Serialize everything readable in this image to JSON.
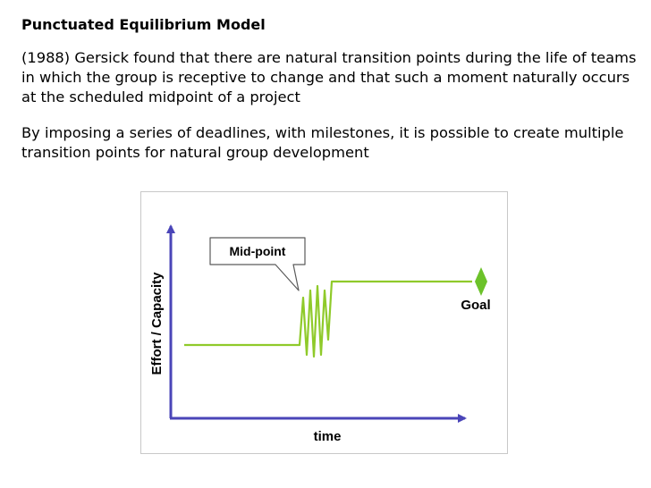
{
  "slide": {
    "title": "Punctuated Equilibrium Model",
    "paragraphs": [
      "(1988) Gersick found that there are natural transition points during the life of teams in which the group is receptive to change and that such a moment naturally occurs at the scheduled midpoint of a project",
      "By imposing a series of deadlines, with milestones, it is possible to create multiple transition points for natural group development"
    ]
  },
  "diagram": {
    "y_axis_label": "Effort / Capacity",
    "x_axis_label": "time",
    "callout_label": "Mid-point",
    "goal_label": "Goal",
    "colors": {
      "axis": "#4a45b8",
      "line": "#8fca2a",
      "goal": "#6cc22a"
    }
  }
}
